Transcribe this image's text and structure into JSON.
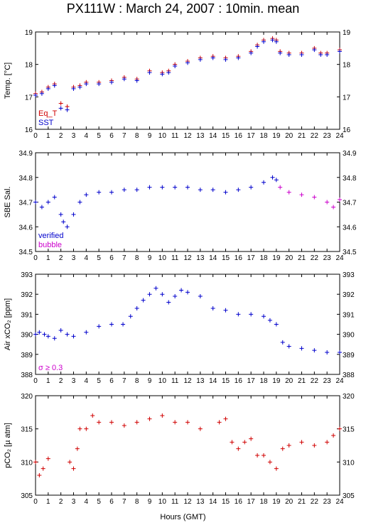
{
  "title": "PX111W : March 24, 2007 : 10min. mean",
  "xlabel": "Hours (GMT)",
  "colors": {
    "red": "#d00000",
    "blue": "#0000cc",
    "magenta": "#cc00cc"
  },
  "chart_data": [
    {
      "type": "scatter",
      "ylabel": "Temp. [°C]",
      "xlim": [
        0,
        24
      ],
      "ylim": [
        16,
        19
      ],
      "yticks": [
        16,
        17,
        18,
        19
      ],
      "legend": [
        "Eq_T",
        "SST"
      ],
      "series": [
        {
          "name": "Eq_T",
          "color": "red",
          "points": [
            [
              0,
              17.1
            ],
            [
              0.5,
              17.15
            ],
            [
              1,
              17.3
            ],
            [
              1.5,
              17.4
            ],
            [
              2,
              16.8
            ],
            [
              2.5,
              16.7
            ],
            [
              3,
              17.3
            ],
            [
              3.5,
              17.35
            ],
            [
              4,
              17.45
            ],
            [
              5,
              17.45
            ],
            [
              6,
              17.5
            ],
            [
              7,
              17.6
            ],
            [
              8,
              17.55
            ],
            [
              9,
              17.8
            ],
            [
              10,
              17.75
            ],
            [
              10.5,
              17.8
            ],
            [
              11,
              18.0
            ],
            [
              12,
              18.1
            ],
            [
              13,
              18.2
            ],
            [
              14,
              18.25
            ],
            [
              15,
              18.2
            ],
            [
              16,
              18.25
            ],
            [
              17,
              18.4
            ],
            [
              17.5,
              18.6
            ],
            [
              18,
              18.75
            ],
            [
              18.7,
              18.8
            ],
            [
              19,
              18.75
            ],
            [
              19.3,
              18.4
            ],
            [
              20,
              18.35
            ],
            [
              21,
              18.35
            ],
            [
              22,
              18.5
            ],
            [
              22.5,
              18.35
            ],
            [
              23,
              18.35
            ],
            [
              24,
              18.45
            ]
          ]
        },
        {
          "name": "SST",
          "color": "blue",
          "points": [
            [
              0,
              17.05
            ],
            [
              0.5,
              17.1
            ],
            [
              1,
              17.25
            ],
            [
              1.5,
              17.35
            ],
            [
              2,
              16.65
            ],
            [
              2.5,
              16.6
            ],
            [
              3,
              17.25
            ],
            [
              3.5,
              17.3
            ],
            [
              4,
              17.4
            ],
            [
              5,
              17.4
            ],
            [
              6,
              17.45
            ],
            [
              7,
              17.55
            ],
            [
              8,
              17.5
            ],
            [
              9,
              17.75
            ],
            [
              10,
              17.7
            ],
            [
              10.5,
              17.75
            ],
            [
              11,
              17.95
            ],
            [
              12,
              18.05
            ],
            [
              13,
              18.15
            ],
            [
              14,
              18.2
            ],
            [
              15,
              18.15
            ],
            [
              16,
              18.2
            ],
            [
              17,
              18.35
            ],
            [
              17.5,
              18.55
            ],
            [
              18,
              18.7
            ],
            [
              18.7,
              18.75
            ],
            [
              19,
              18.7
            ],
            [
              19.3,
              18.35
            ],
            [
              20,
              18.3
            ],
            [
              21,
              18.3
            ],
            [
              22,
              18.45
            ],
            [
              22.5,
              18.3
            ],
            [
              23,
              18.3
            ],
            [
              24,
              18.4
            ]
          ]
        }
      ]
    },
    {
      "type": "scatter",
      "ylabel": "SBE Sal.",
      "xlim": [
        0,
        24
      ],
      "ylim": [
        34.5,
        34.9
      ],
      "yticks": [
        34.5,
        34.6,
        34.7,
        34.8,
        34.9
      ],
      "legend": [
        "verified",
        "bubble"
      ],
      "series": [
        {
          "name": "verified",
          "color": "blue",
          "points": [
            [
              0,
              34.7
            ],
            [
              0.5,
              34.68
            ],
            [
              1,
              34.7
            ],
            [
              1.5,
              34.72
            ],
            [
              2,
              34.65
            ],
            [
              2.2,
              34.62
            ],
            [
              2.5,
              34.6
            ],
            [
              3,
              34.65
            ],
            [
              3.5,
              34.7
            ],
            [
              4,
              34.73
            ],
            [
              5,
              34.74
            ],
            [
              6,
              34.74
            ],
            [
              7,
              34.75
            ],
            [
              8,
              34.75
            ],
            [
              9,
              34.76
            ],
            [
              10,
              34.76
            ],
            [
              11,
              34.76
            ],
            [
              12,
              34.76
            ],
            [
              13,
              34.75
            ],
            [
              14,
              34.75
            ],
            [
              15,
              34.74
            ],
            [
              16,
              34.75
            ],
            [
              17,
              34.76
            ],
            [
              18,
              34.78
            ],
            [
              18.7,
              34.8
            ],
            [
              19,
              34.79
            ]
          ]
        },
        {
          "name": "bubble",
          "color": "magenta",
          "points": [
            [
              19.3,
              34.76
            ],
            [
              20,
              34.74
            ],
            [
              21,
              34.73
            ],
            [
              22,
              34.72
            ],
            [
              23,
              34.7
            ],
            [
              23.5,
              34.68
            ],
            [
              24,
              34.71
            ]
          ]
        }
      ]
    },
    {
      "type": "scatter",
      "ylabel": "Air xCO₂ [ppm]",
      "xlim": [
        0,
        24
      ],
      "ylim": [
        388,
        393
      ],
      "yticks": [
        388,
        389,
        390,
        391,
        392,
        393
      ],
      "legend": [
        "σ ≥ 0.3"
      ],
      "series": [
        {
          "name": "",
          "color": "blue",
          "points": [
            [
              0,
              390.0
            ],
            [
              0.3,
              390.1
            ],
            [
              0.7,
              390.0
            ],
            [
              1,
              389.9
            ],
            [
              1.5,
              389.8
            ],
            [
              2,
              390.2
            ],
            [
              2.5,
              390.0
            ],
            [
              3,
              389.9
            ],
            [
              4,
              390.1
            ],
            [
              5,
              390.4
            ],
            [
              6,
              390.5
            ],
            [
              6.9,
              390.5
            ],
            [
              7.5,
              390.9
            ],
            [
              8,
              391.3
            ],
            [
              8.5,
              391.7
            ],
            [
              9,
              392.0
            ],
            [
              9.5,
              392.3
            ],
            [
              10,
              392.0
            ],
            [
              10.5,
              391.6
            ],
            [
              11,
              391.9
            ],
            [
              11.5,
              392.2
            ],
            [
              12,
              392.1
            ],
            [
              13,
              391.9
            ],
            [
              14,
              391.3
            ],
            [
              15,
              391.2
            ],
            [
              16,
              391.0
            ],
            [
              17,
              391.0
            ],
            [
              18,
              390.9
            ],
            [
              18.5,
              390.7
            ],
            [
              19,
              390.5
            ],
            [
              19.5,
              389.6
            ],
            [
              20,
              389.4
            ],
            [
              21,
              389.3
            ],
            [
              22,
              389.2
            ],
            [
              23,
              389.1
            ],
            [
              24,
              389.1
            ]
          ]
        }
      ]
    },
    {
      "type": "scatter",
      "ylabel": "pCO₂ [µ atm]",
      "xlim": [
        0,
        24
      ],
      "ylim": [
        305,
        320
      ],
      "yticks": [
        305,
        310,
        315,
        320
      ],
      "series": [
        {
          "name": "",
          "color": "red",
          "points": [
            [
              0,
              310
            ],
            [
              0.3,
              308
            ],
            [
              0.6,
              309
            ],
            [
              1,
              310.5
            ],
            [
              2.7,
              310
            ],
            [
              3,
              309
            ],
            [
              3.3,
              312
            ],
            [
              3.5,
              315
            ],
            [
              4,
              315
            ],
            [
              4.5,
              317
            ],
            [
              5,
              316
            ],
            [
              6,
              316
            ],
            [
              7,
              315.5
            ],
            [
              8,
              316
            ],
            [
              9,
              316.5
            ],
            [
              10,
              317
            ],
            [
              11,
              316
            ],
            [
              12,
              316
            ],
            [
              13,
              315
            ],
            [
              14.5,
              316
            ],
            [
              15,
              316.5
            ],
            [
              15.5,
              313
            ],
            [
              16,
              312
            ],
            [
              16.5,
              313
            ],
            [
              17,
              313.5
            ],
            [
              17.5,
              311
            ],
            [
              18,
              311
            ],
            [
              18.5,
              310
            ],
            [
              19,
              309
            ],
            [
              19.5,
              312
            ],
            [
              20,
              312.5
            ],
            [
              21,
              313
            ],
            [
              22,
              312.5
            ],
            [
              23,
              313
            ],
            [
              23.5,
              314
            ],
            [
              24,
              315
            ]
          ]
        }
      ]
    }
  ]
}
